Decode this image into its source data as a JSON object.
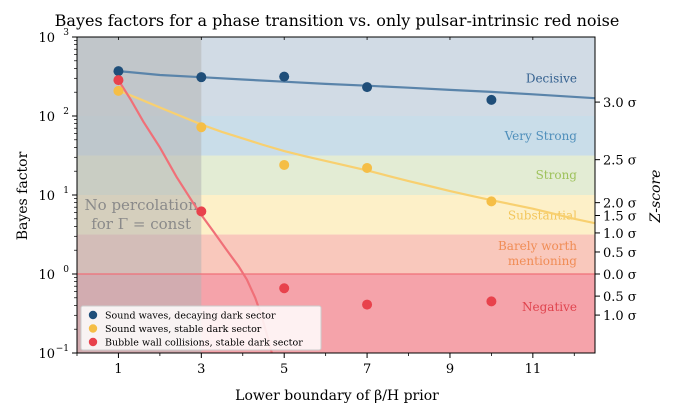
{
  "chart_data": {
    "type": "scatter",
    "title": "Bayes factors for a phase transition vs. only pulsar-intrinsic red noise",
    "xlabel": "Lower boundary of β/H prior",
    "ylabel": "Bayes factor",
    "ylabel_right": "Z-score",
    "xlim": [
      0,
      12.5
    ],
    "ylim": [
      0.1,
      1000
    ],
    "yscale": "log",
    "xticks": [
      1,
      3,
      5,
      7,
      9,
      11
    ],
    "xtick_labels": [
      "1",
      "3",
      "5",
      "7",
      "9",
      "11"
    ],
    "yticks": [
      0.1,
      1,
      10,
      100,
      1000
    ],
    "ytick_labels": [
      "10",
      "10",
      "10",
      "10",
      "10"
    ],
    "ytick_exponents": [
      "−1",
      "0",
      "1",
      "2",
      "3"
    ],
    "yticks_right": [
      {
        "value": 0.302,
        "label": "1.0 σ"
      },
      {
        "value": 0.525,
        "label": "0.5 σ"
      },
      {
        "value": 1.0,
        "label": "0.0 σ"
      },
      {
        "value": 1.9,
        "label": "0.5 σ"
      },
      {
        "value": 3.31,
        "label": "1.0 σ"
      },
      {
        "value": 5.5,
        "label": "1.5 σ"
      },
      {
        "value": 8.0,
        "label": "2.0 σ"
      },
      {
        "value": 28.0,
        "label": "2.5 σ"
      },
      {
        "value": 150.0,
        "label": "3.0 σ"
      }
    ],
    "bands": [
      {
        "label": "Negative",
        "ymin": 0.1,
        "ymax": 1,
        "color": "#f5a3aa",
        "text_color": "#e0444e",
        "label_y": 0.38
      },
      {
        "label": "Barely worth",
        "label2": "mentioning",
        "ymin": 1,
        "ymax": 3.16,
        "color": "#f9c8bc",
        "text_color": "#f08c55",
        "label_y": 1.78
      },
      {
        "label": "Substantial",
        "ymin": 3.16,
        "ymax": 10,
        "color": "#fdf0c8",
        "text_color": "#f3c65c",
        "label_y": 5.5
      },
      {
        "label": "Strong",
        "ymin": 10,
        "ymax": 31.6,
        "color": "#e3ecd4",
        "text_color": "#9ec25b",
        "label_y": 17.8
      },
      {
        "label": "Very Strong",
        "ymin": 31.6,
        "ymax": 100,
        "color": "#c9dde9",
        "text_color": "#4f8fbb",
        "label_y": 56
      },
      {
        "label": "Decisive",
        "ymin": 100,
        "ymax": 1000,
        "color": "#d1dbe5",
        "text_color": "#33608f",
        "label_y": 300
      }
    ],
    "no_percolation": {
      "xmin": 0,
      "xmax": 3,
      "line1": "No percolation",
      "line2": "for Γ = const",
      "color": "#b4b4b4",
      "text_color": "#8a8a8a"
    },
    "reference_line": {
      "y": 1.0,
      "color": "#f07078"
    },
    "series": [
      {
        "name": "Sound waves, decaying dark sector",
        "color": "#1f4e79",
        "line_color": "#5a84aa",
        "points": {
          "x": [
            1,
            3,
            5,
            7,
            10
          ],
          "y": [
            370,
            310,
            315,
            232,
            160
          ]
        },
        "curve": {
          "x": [
            1,
            2,
            3,
            4,
            5,
            6,
            7,
            8,
            9,
            10,
            11,
            12.5
          ],
          "y": [
            370,
            330,
            310,
            290,
            272,
            255,
            242,
            228,
            214,
            202,
            188,
            168
          ]
        }
      },
      {
        "name": "Sound waves, stable dark sector",
        "color": "#f5be46",
        "line_color": "#f8d070",
        "points": {
          "x": [
            1,
            3,
            5,
            7,
            10
          ],
          "y": [
            208,
            72,
            24,
            22,
            8.3
          ]
        },
        "curve": {
          "x": [
            1,
            1.5,
            2,
            2.5,
            3,
            3.5,
            4,
            4.5,
            5,
            5.5,
            6,
            6.5,
            7,
            7.5,
            8,
            8.5,
            9,
            9.5,
            10,
            10.5,
            11,
            11.5,
            12,
            12.5
          ],
          "y": [
            210,
            165,
            128,
            100,
            78,
            63,
            52,
            43,
            36,
            31,
            27,
            23.5,
            20.5,
            17.5,
            15,
            13,
            11.2,
            9.8,
            8.6,
            7.6,
            6.7,
            5.8,
            5.0,
            4.4
          ]
        }
      },
      {
        "name": "Bubble wall collisions, stable dark sector",
        "color": "#e8424c",
        "line_color": "#f07078",
        "points": {
          "x": [
            1,
            3,
            5,
            7,
            10
          ],
          "y": [
            285,
            6.2,
            0.66,
            0.41,
            0.45
          ]
        },
        "curve": {
          "x": [
            1,
            1.3,
            1.6,
            2.0,
            2.4,
            2.8,
            3.0,
            3.3,
            3.6,
            3.9,
            4.1,
            4.3,
            4.45,
            4.6,
            4.7
          ],
          "y": [
            285,
            160,
            85,
            40,
            17,
            8.0,
            5.6,
            3.4,
            2.05,
            1.25,
            0.85,
            0.5,
            0.3,
            0.16,
            0.1
          ]
        }
      }
    ],
    "legend_position": "bottom-left"
  }
}
